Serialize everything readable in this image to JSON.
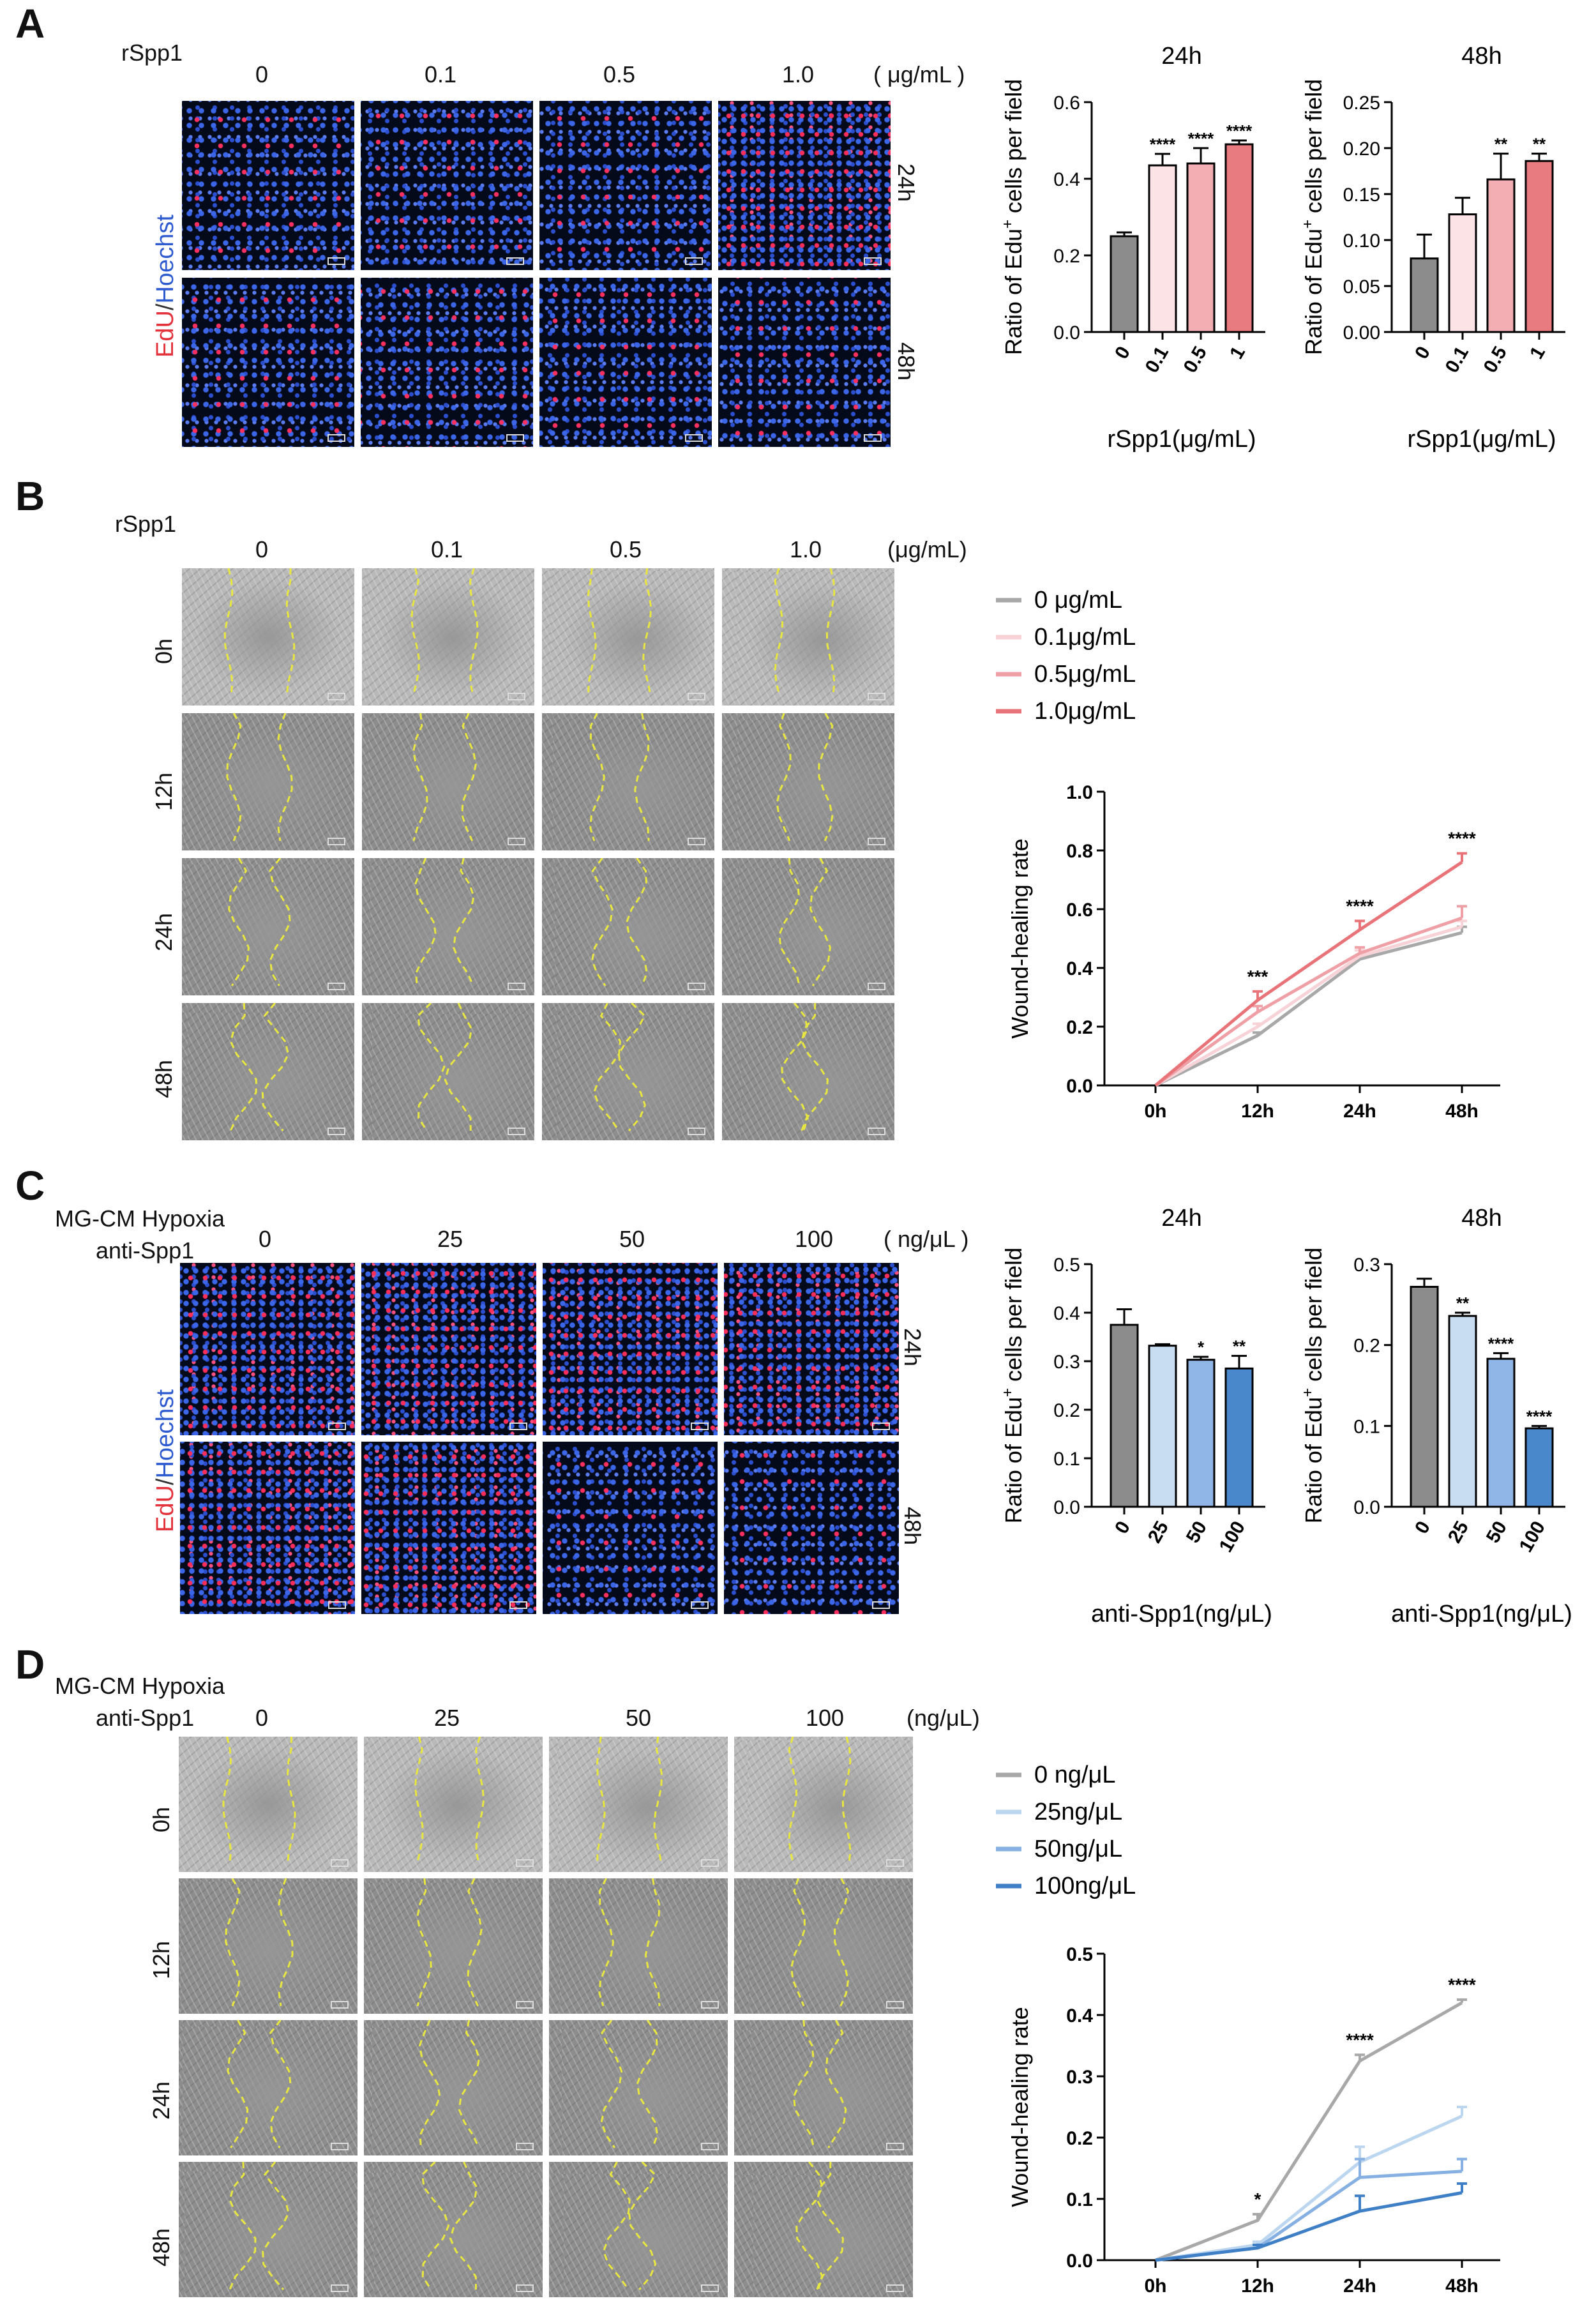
{
  "panels": {
    "A": {
      "label": "A",
      "treatment": "rSpp1",
      "conc_labels": [
        "0",
        "0.1",
        "0.5",
        "1.0"
      ],
      "unit": "( μg/mL )",
      "row_labels": [
        "24h",
        "48h"
      ],
      "stain_red": "EdU",
      "stain_sep": "/",
      "stain_blue": "Hoechst"
    },
    "B": {
      "label": "B",
      "treatment": "rSpp1",
      "conc_labels": [
        "0",
        "0.1",
        "0.5",
        "1.0"
      ],
      "unit": "(μg/mL)",
      "row_labels": [
        "0h",
        "12h",
        "24h",
        "48h"
      ]
    },
    "C": {
      "label": "C",
      "treatment_line1": "MG-CM Hypoxia",
      "treatment_line2": "anti-Spp1",
      "conc_labels": [
        "0",
        "25",
        "50",
        "100"
      ],
      "unit": "( ng/μL )",
      "row_labels": [
        "24h",
        "48h"
      ],
      "stain_red": "EdU",
      "stain_sep": "/",
      "stain_blue": "Hoechst"
    },
    "D": {
      "label": "D",
      "treatment_line1": "MG-CM Hypoxia",
      "treatment_line2": "anti-Spp1",
      "conc_labels": [
        "0",
        "25",
        "50",
        "100"
      ],
      "unit": "(ng/μL)",
      "row_labels": [
        "0h",
        "12h",
        "24h",
        "48h"
      ]
    }
  },
  "colors": {
    "grey": "#8c8c8c",
    "pink_light": "#fbe3e6",
    "pink_mid": "#f3aeb4",
    "pink_dark": "#e87b80",
    "blue_light": "#c8dcf2",
    "blue_mid": "#8fb6e6",
    "blue_dark": "#4a88cc",
    "grey_line": "#a8a8a8",
    "pink_line1": "#f7d2d6",
    "pink_line2": "#eea0a6",
    "pink_line3": "#e87479",
    "blue_line1": "#bcd6f0",
    "blue_line2": "#86b0e2",
    "blue_line3": "#3f7fc6"
  },
  "chart_data": [
    {
      "id": "A24",
      "type": "bar",
      "title": "24h",
      "xlabel": "rSpp1(μg/mL)",
      "ylabel_pre": "Ratio of Edu",
      "ylabel_sup": "+",
      "ylabel_post": " cells per field",
      "categories": [
        "0",
        "0.1",
        "0.5",
        "1"
      ],
      "values": [
        0.25,
        0.435,
        0.44,
        0.49
      ],
      "errors": [
        0.01,
        0.03,
        0.04,
        0.01
      ],
      "significance": [
        "",
        "****",
        "****",
        "****"
      ],
      "ylim": [
        0,
        0.6
      ],
      "yticks": [
        "0.0",
        "0.2",
        "0.4",
        "0.6"
      ],
      "colors": [
        "#8c8c8c",
        "#fbe3e6",
        "#f3aeb4",
        "#e87b80"
      ]
    },
    {
      "id": "A48",
      "type": "bar",
      "title": "48h",
      "xlabel": "rSpp1(μg/mL)",
      "ylabel_pre": "Ratio of Edu",
      "ylabel_sup": "+",
      "ylabel_post": " cells per field",
      "categories": [
        "0",
        "0.1",
        "0.5",
        "1"
      ],
      "values": [
        0.08,
        0.128,
        0.166,
        0.186
      ],
      "errors": [
        0.026,
        0.018,
        0.028,
        0.008
      ],
      "significance": [
        "",
        "",
        "**",
        "**"
      ],
      "ylim": [
        0,
        0.25
      ],
      "yticks": [
        "0.00",
        "0.05",
        "0.10",
        "0.15",
        "0.20",
        "0.25"
      ],
      "colors": [
        "#8c8c8c",
        "#fbe3e6",
        "#f3aeb4",
        "#e87b80"
      ]
    },
    {
      "id": "B",
      "type": "line",
      "x": [
        "0h",
        "12h",
        "24h",
        "48h"
      ],
      "ylabel": "Wound-healing rate",
      "ylim": [
        0,
        1.0
      ],
      "yticks": [
        "0.0",
        "0.2",
        "0.4",
        "0.6",
        "0.8",
        "1.0"
      ],
      "series": [
        {
          "name": "0  μg/mL",
          "values": [
            0,
            0.17,
            0.43,
            0.52
          ],
          "errors": [
            0,
            0.01,
            0.01,
            0.02
          ],
          "color": "#a8a8a8"
        },
        {
          "name": "0.1μg/mL",
          "values": [
            0,
            0.2,
            0.44,
            0.54
          ],
          "errors": [
            0,
            0.01,
            0.02,
            0.02
          ],
          "color": "#f7d2d6"
        },
        {
          "name": "0.5μg/mL",
          "values": [
            0,
            0.25,
            0.45,
            0.57
          ],
          "errors": [
            0,
            0.02,
            0.02,
            0.04
          ],
          "color": "#eea0a6"
        },
        {
          "name": "1.0μg/mL",
          "values": [
            0,
            0.29,
            0.53,
            0.76
          ],
          "errors": [
            0,
            0.03,
            0.03,
            0.03
          ],
          "color": "#e87479"
        }
      ],
      "significance": [
        "",
        "***",
        "****",
        "****"
      ]
    },
    {
      "id": "C24",
      "type": "bar",
      "title": "24h",
      "xlabel": "anti-Spp1(ng/μL)",
      "ylabel_pre": "Ratio of Edu",
      "ylabel_sup": "+",
      "ylabel_post": " cells per field",
      "categories": [
        "0",
        "25",
        "50",
        "100"
      ],
      "values": [
        0.375,
        0.332,
        0.303,
        0.285
      ],
      "errors": [
        0.032,
        0.003,
        0.006,
        0.026
      ],
      "significance": [
        "",
        "",
        "*",
        "**"
      ],
      "ylim": [
        0,
        0.5
      ],
      "yticks": [
        "0.0",
        "0.1",
        "0.2",
        "0.3",
        "0.4",
        "0.5"
      ],
      "colors": [
        "#8c8c8c",
        "#c8dcf2",
        "#8fb6e6",
        "#4a88cc"
      ]
    },
    {
      "id": "C48",
      "type": "bar",
      "title": "48h",
      "xlabel": "anti-Spp1(ng/μL)",
      "ylabel_pre": "Ratio of Edu",
      "ylabel_sup": "+",
      "ylabel_post": " cells per field",
      "categories": [
        "0",
        "25",
        "50",
        "100"
      ],
      "values": [
        0.272,
        0.236,
        0.183,
        0.097
      ],
      "errors": [
        0.01,
        0.004,
        0.007,
        0.003
      ],
      "significance": [
        "",
        "**",
        "****",
        "****"
      ],
      "ylim": [
        0,
        0.3
      ],
      "yticks": [
        "0.0",
        "0.1",
        "0.2",
        "0.3"
      ],
      "colors": [
        "#8c8c8c",
        "#c8dcf2",
        "#8fb6e6",
        "#4a88cc"
      ]
    },
    {
      "id": "D",
      "type": "line",
      "x": [
        "0h",
        "12h",
        "24h",
        "48h"
      ],
      "ylabel": "Wound-healing rate",
      "ylim": [
        0,
        0.5
      ],
      "yticks": [
        "0.0",
        "0.1",
        "0.2",
        "0.3",
        "0.4",
        "0.5"
      ],
      "series": [
        {
          "name": "0 ng/μL",
          "values": [
            0,
            0.065,
            0.325,
            0.42
          ],
          "errors": [
            0,
            0.01,
            0.01,
            0.005
          ],
          "color": "#a8a8a8"
        },
        {
          "name": "25ng/μL",
          "values": [
            0,
            0.025,
            0.16,
            0.235
          ],
          "errors": [
            0,
            0.005,
            0.025,
            0.015
          ],
          "color": "#bcd6f0"
        },
        {
          "name": "50ng/μL",
          "values": [
            0,
            0.02,
            0.135,
            0.145
          ],
          "errors": [
            0,
            0.005,
            0.03,
            0.02
          ],
          "color": "#86b0e2"
        },
        {
          "name": "100ng/μL",
          "values": [
            0,
            0.02,
            0.08,
            0.11
          ],
          "errors": [
            0,
            0.005,
            0.025,
            0.015
          ],
          "color": "#3f7fc6"
        }
      ],
      "significance": [
        "",
        "*",
        "****",
        "****"
      ]
    }
  ]
}
